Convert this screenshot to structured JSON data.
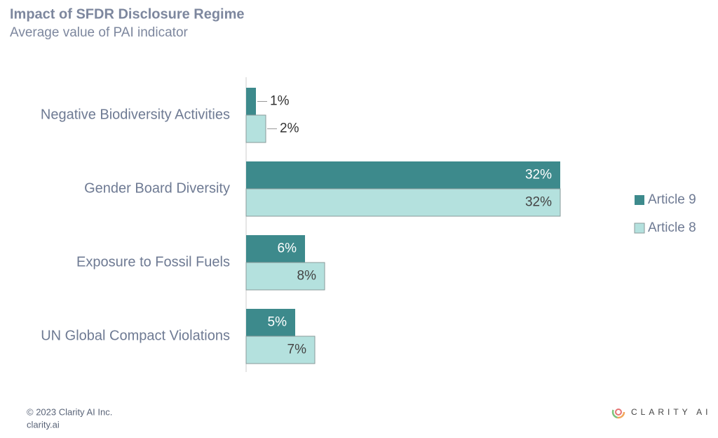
{
  "chart_data": {
    "type": "bar",
    "orientation": "horizontal",
    "title": "Impact of SFDR Disclosure Regime",
    "subtitle": "Average value of PAI indicator",
    "categories": [
      "Negative Biodiversity Activities",
      "Gender Board Diversity",
      "Exposure to Fossil Fuels",
      "UN Global Compact Violations"
    ],
    "series": [
      {
        "name": "Article 9",
        "color": "#3d8a8c",
        "values": [
          1,
          32,
          6,
          5
        ],
        "value_labels": [
          "1%",
          "32%",
          "6%",
          "5%"
        ]
      },
      {
        "name": "Article 8",
        "color": "#b4e1de",
        "values": [
          2,
          32,
          8,
          7
        ],
        "value_labels": [
          "2%",
          "32%",
          "8%",
          "7%"
        ]
      }
    ],
    "legend": "right"
  },
  "footer": {
    "copyright": "© 2023 Clarity AI Inc.",
    "website": "clarity.ai",
    "logo": "CLARITY AI"
  }
}
